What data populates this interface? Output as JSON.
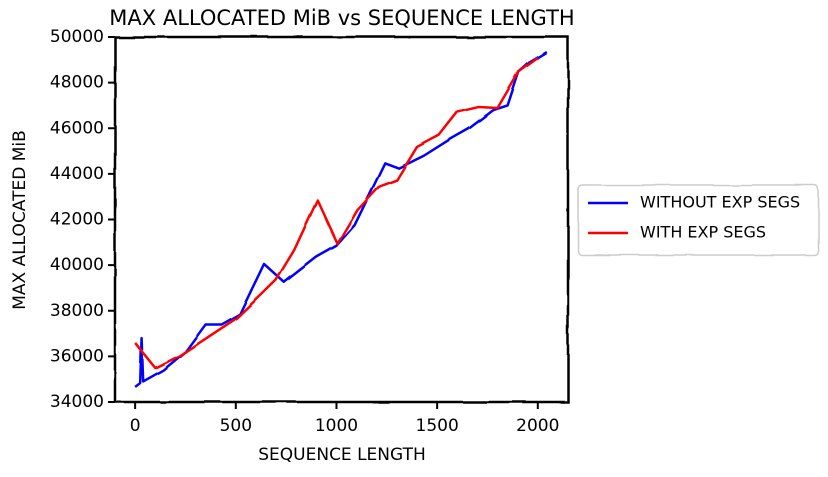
{
  "chart_data": {
    "type": "line",
    "title": "MAX ALLOCATED MiB vs SEQUENCE LENGTH",
    "x_label": "SEQUENCE LENGTH",
    "y_label": "MAX ALLOCATED MiB",
    "xlim": [
      -100,
      2150
    ],
    "xticks": [
      0,
      500,
      1000,
      1500,
      2000
    ],
    "ylim": [
      34000,
      50000
    ],
    "yticks": [
      34000,
      36000,
      38000,
      40000,
      42000,
      44000,
      46000,
      48000,
      50000
    ],
    "legend": "outside-right",
    "series": [
      {
        "name": "WITHOUT EXP SEGS",
        "color": "#0000ff",
        "x": [
          0,
          25,
          32,
          40,
          140,
          250,
          350,
          430,
          520,
          640,
          740,
          900,
          1000,
          1090,
          1240,
          1310,
          1435,
          1560,
          1660,
          1780,
          1850,
          1905,
          1955,
          2045
        ],
        "values": [
          34660,
          34830,
          36800,
          34900,
          35400,
          36200,
          37400,
          37400,
          37850,
          40050,
          39250,
          40350,
          40850,
          41750,
          44480,
          44250,
          44800,
          45500,
          46000,
          46800,
          47000,
          48470,
          48860,
          49340
        ]
      },
      {
        "name": "WITH EXP SEGS",
        "color": "#ff0000",
        "x": [
          0,
          100,
          220,
          320,
          505,
          630,
          700,
          790,
          905,
          1005,
          1105,
          1210,
          1300,
          1400,
          1510,
          1600,
          1705,
          1800,
          1905,
          2000
        ],
        "values": [
          36590,
          35490,
          36020,
          36600,
          37680,
          38740,
          39350,
          40660,
          42850,
          40930,
          42420,
          43430,
          43730,
          45180,
          45700,
          46710,
          46930,
          46890,
          48470,
          49080
        ]
      }
    ]
  }
}
